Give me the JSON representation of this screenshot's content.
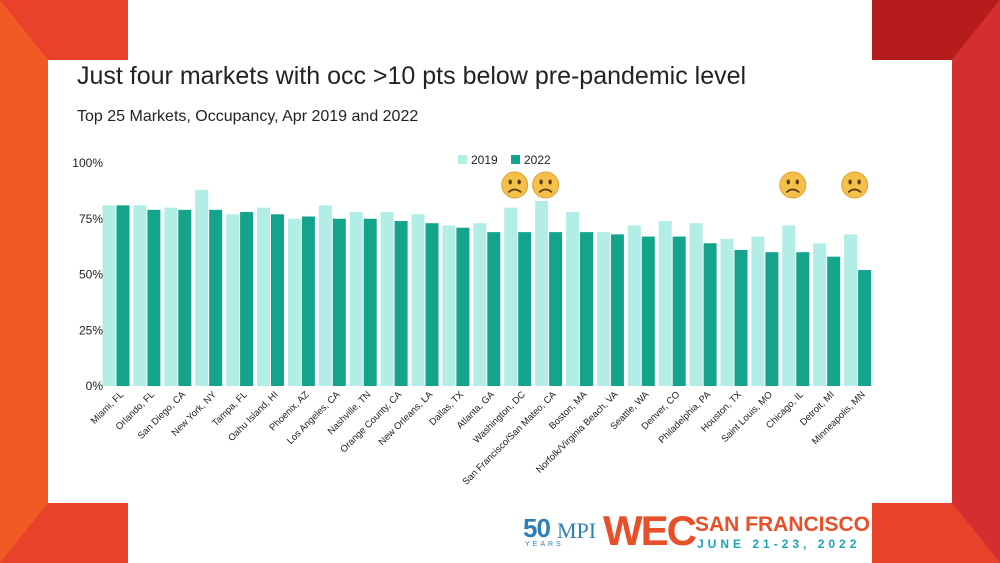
{
  "slide": {
    "title": "Just four markets with occ >10 pts below pre-pandemic level",
    "subtitle": "Top 25 Markets, Occupancy, Apr 2019 and 2022"
  },
  "colors": {
    "frame_red": "#d32f2f",
    "frame_orange": "#f15a24",
    "series_2019": "#b2ede6",
    "series_2022": "#14a38b",
    "emoji_face": "#f5c04a"
  },
  "chart_data": {
    "type": "bar",
    "categories": [
      "Miami, FL",
      "Orlando, FL",
      "San Diego, CA",
      "New York, NY",
      "Tampa, FL",
      "Oahu Island, HI",
      "Phoenix, AZ",
      "Los Angeles, CA",
      "Nashville, TN",
      "Orange County, CA",
      "New Orleans, LA",
      "Dallas, TX",
      "Atlanta, GA",
      "Washington, DC",
      "San Francisco/San Mateo, CA",
      "Boston, MA",
      "Norfolk/Virginia Beach, VA",
      "Seattle, WA",
      "Denver, CO",
      "Philadelphia, PA",
      "Houston, TX",
      "Saint Louis, MO",
      "Chicago, IL",
      "Detroit, MI",
      "Minneapolis, MN"
    ],
    "series": [
      {
        "name": "2019",
        "values": [
          81,
          81,
          80,
          88,
          77,
          80,
          75,
          81,
          78,
          78,
          77,
          72,
          73,
          80,
          83,
          78,
          69,
          72,
          74,
          73,
          66,
          67,
          72,
          64,
          68
        ]
      },
      {
        "name": "2022",
        "values": [
          81,
          79,
          79,
          79,
          78,
          77,
          76,
          75,
          75,
          74,
          73,
          71,
          69,
          69,
          69,
          69,
          68,
          67,
          67,
          64,
          61,
          60,
          60,
          58,
          52
        ]
      }
    ],
    "yticks": [
      "100%",
      "75%",
      "50%",
      "25%",
      "0%"
    ],
    "ylim": [
      0,
      100
    ],
    "legend_position": "top",
    "grid": false,
    "annotations": [
      {
        "category": "Washington, DC",
        "icon": "frown-emoji-icon"
      },
      {
        "category": "San Francisco/San Mateo, CA",
        "icon": "frown-emoji-icon"
      },
      {
        "category": "Chicago, IL",
        "icon": "frown-emoji-icon"
      },
      {
        "category": "Minneapolis, MN",
        "icon": "frown-emoji-icon"
      }
    ]
  },
  "logo": {
    "anniversary": "50",
    "org": "MPI",
    "years": "YEARS",
    "event": "WEC",
    "city": "SAN FRANCISCO",
    "dates": "JUNE 21-23, 2022"
  }
}
